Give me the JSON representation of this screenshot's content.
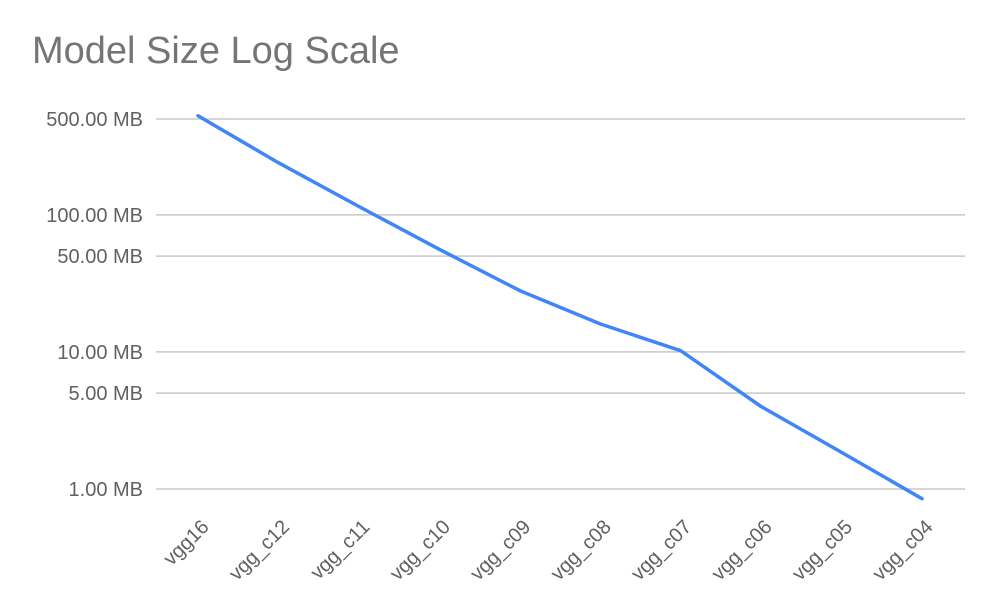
{
  "chart_data": {
    "type": "line",
    "title": "Model Size Log Scale",
    "xlabel": "",
    "ylabel": "",
    "y_scale": "log",
    "ylim": [
      1,
      500
    ],
    "grid": true,
    "categories": [
      "vgg16",
      "vgg_c12",
      "vgg_c11",
      "vgg_c10",
      "vgg_c09",
      "vgg_c08",
      "vgg_c07",
      "vgg_c06",
      "vgg_c05",
      "vgg_c04"
    ],
    "y_ticks": [
      {
        "value": 500,
        "label": "500.00 MB"
      },
      {
        "value": 100,
        "label": "100.00 MB"
      },
      {
        "value": 50,
        "label": "50.00 MB"
      },
      {
        "value": 10,
        "label": "10.00 MB"
      },
      {
        "value": 5,
        "label": "5.00 MB"
      },
      {
        "value": 1,
        "label": "1.00 MB"
      }
    ],
    "series": [
      {
        "values": [
          528,
          240,
          115,
          56,
          28,
          16,
          10.2,
          4,
          1.85,
          0.85
        ],
        "color": "#4285f4"
      }
    ]
  }
}
